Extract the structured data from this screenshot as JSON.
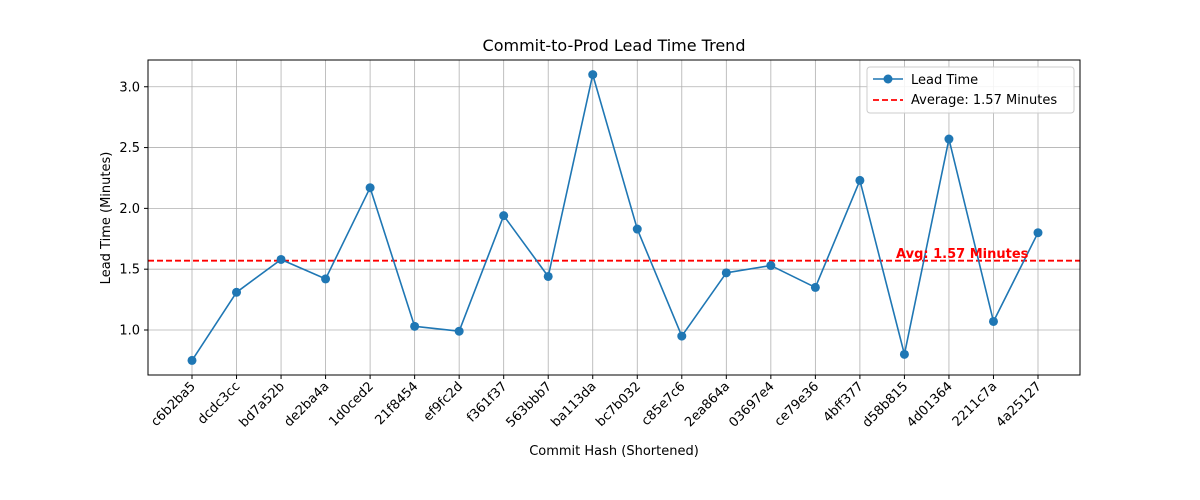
{
  "chart_data": {
    "type": "line",
    "title": "Commit-to-Prod Lead Time Trend",
    "xlabel": "Commit Hash (Shortened)",
    "ylabel": "Lead Time (Minutes)",
    "categories": [
      "c6b2ba5",
      "dcdc3cc",
      "bd7a52b",
      "de2ba4a",
      "1d0ced2",
      "21f8454",
      "ef9fc2d",
      "f361f37",
      "563bbb7",
      "ba113da",
      "bc7b032",
      "c85e7c6",
      "2ea864a",
      "03697e4",
      "ce79e36",
      "4bff377",
      "d58b815",
      "4d01364",
      "2211c7a",
      "4a25127"
    ],
    "series": [
      {
        "name": "Lead Time",
        "color": "#1f77b4",
        "marker": "circle",
        "values": [
          0.75,
          1.31,
          1.58,
          1.42,
          2.17,
          1.03,
          0.99,
          1.94,
          1.44,
          3.1,
          1.83,
          0.95,
          1.47,
          1.53,
          1.35,
          2.23,
          0.8,
          2.57,
          1.07,
          1.8
        ]
      }
    ],
    "reference_line": {
      "name": "Average: 1.57 Minutes",
      "value": 1.57,
      "color": "#ff0000",
      "style": "dashed"
    },
    "annotation": {
      "text": "Avg: 1.57 Minutes",
      "color": "#ff0000"
    },
    "ylim": [
      0.63,
      3.22
    ],
    "yticks": [
      1.0,
      1.5,
      2.0,
      2.5,
      3.0
    ],
    "ytick_labels": [
      "1.0",
      "1.5",
      "2.0",
      "2.5",
      "3.0"
    ],
    "grid": true,
    "legend_position": "top-right"
  }
}
